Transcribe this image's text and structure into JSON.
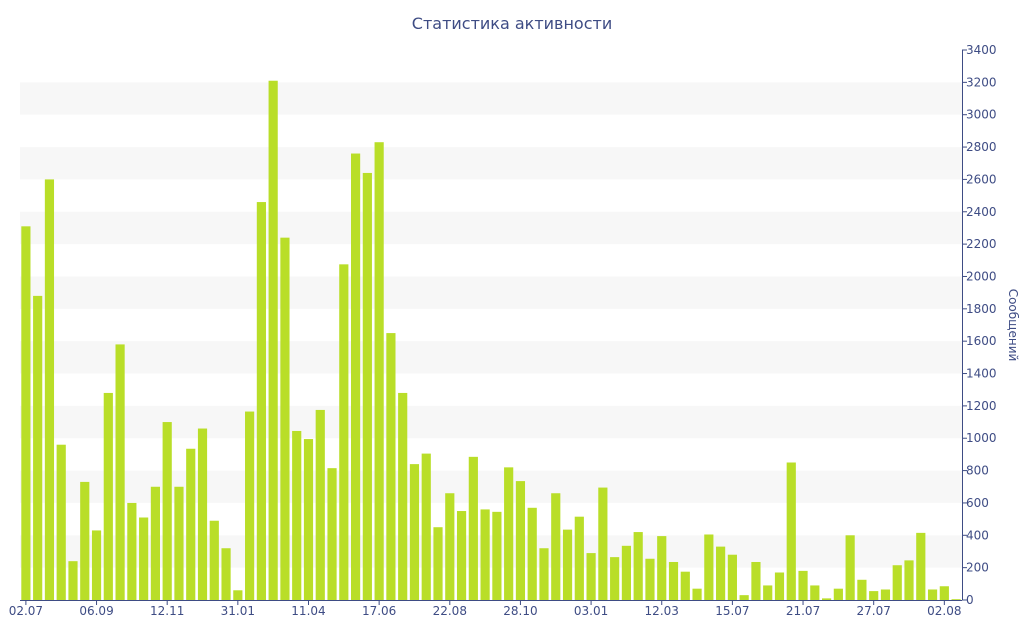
{
  "chart_data": {
    "type": "bar",
    "title": "Статистика активности",
    "ylabel": "Сообщений",
    "xlabel": "",
    "ylim": [
      0,
      3400
    ],
    "y_ticks": [
      0,
      200,
      400,
      600,
      800,
      1000,
      1200,
      1400,
      1600,
      1800,
      2000,
      2200,
      2400,
      2600,
      2800,
      3000,
      3200,
      3400
    ],
    "x_tick_labels": [
      {
        "index": 0,
        "label": "02.07"
      },
      {
        "index": 6,
        "label": "06.09"
      },
      {
        "index": 12,
        "label": "12.11"
      },
      {
        "index": 18,
        "label": "31.01"
      },
      {
        "index": 24,
        "label": "11.04"
      },
      {
        "index": 30,
        "label": "17.06"
      },
      {
        "index": 36,
        "label": "22.08"
      },
      {
        "index": 42,
        "label": "28.10"
      },
      {
        "index": 48,
        "label": "03.01"
      },
      {
        "index": 54,
        "label": "12.03"
      },
      {
        "index": 60,
        "label": "15.07"
      },
      {
        "index": 66,
        "label": "21.07"
      },
      {
        "index": 72,
        "label": "27.07"
      },
      {
        "index": 78,
        "label": "02.08"
      }
    ],
    "values": [
      2310,
      1880,
      2600,
      960,
      240,
      730,
      430,
      1280,
      1580,
      600,
      510,
      700,
      1100,
      700,
      935,
      1060,
      490,
      320,
      60,
      1165,
      2460,
      3210,
      2240,
      1045,
      995,
      1175,
      815,
      2075,
      2760,
      2640,
      2830,
      1650,
      1280,
      840,
      905,
      450,
      660,
      550,
      885,
      560,
      545,
      820,
      735,
      570,
      320,
      660,
      435,
      515,
      290,
      695,
      265,
      335,
      420,
      255,
      395,
      235,
      175,
      70,
      405,
      330,
      280,
      30,
      235,
      90,
      170,
      850,
      180,
      90,
      10,
      70,
      400,
      125,
      55,
      65,
      215,
      245,
      415,
      65,
      85,
      5
    ],
    "grid": true,
    "y_axis_position": "right",
    "legend": "none",
    "colors": {
      "bar": "#b9de28",
      "band": "#f7f7f7",
      "text": "#3e4c84",
      "axis": "#3e4c84"
    }
  }
}
